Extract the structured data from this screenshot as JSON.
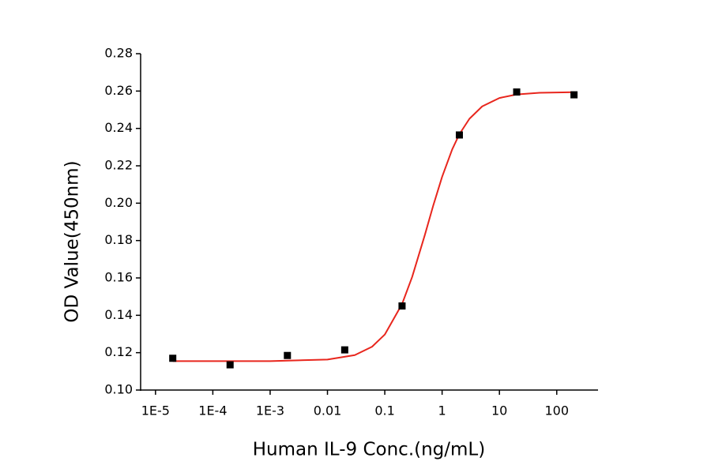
{
  "chart_data": {
    "type": "scatter",
    "x_label": "Human IL-9 Conc.(ng/mL)",
    "y_label": "OD Value(450nm)",
    "xscale": "log",
    "xlim": [
      5.5e-06,
      525
    ],
    "xticks": [
      {
        "value": 1e-05,
        "label": "1E-5"
      },
      {
        "value": 0.0001,
        "label": "1E-4"
      },
      {
        "value": 0.001,
        "label": "1E-3"
      },
      0.01,
      0.1,
      1,
      10,
      100
    ],
    "ylim": [
      0.1,
      0.28
    ],
    "yticks": [
      {
        "value": 0.1,
        "label": "0.10"
      },
      0.12,
      0.14,
      0.16,
      0.18,
      {
        "value": 0.2,
        "label": "0.20"
      },
      0.22,
      0.24,
      0.26,
      0.28
    ],
    "series": [
      {
        "type": "scatter",
        "color": "#000000",
        "x": [
          2e-05,
          0.0002,
          0.002,
          0.02,
          0.2,
          2,
          20,
          200
        ],
        "values": [
          0.117,
          0.1135,
          0.1185,
          0.1215,
          0.145,
          0.2365,
          0.2595,
          0.258
        ]
      },
      {
        "type": "line",
        "color": "#e8261d",
        "x": [
          2e-05,
          0.0001,
          0.001,
          0.01,
          0.03,
          0.06,
          0.1,
          0.2,
          0.3,
          0.5,
          0.7,
          1,
          1.5,
          2,
          3,
          5,
          10,
          20,
          50,
          200
        ],
        "values": [
          0.1155,
          0.1155,
          0.1155,
          0.1163,
          0.1187,
          0.1232,
          0.1297,
          0.146,
          0.1605,
          0.183,
          0.1987,
          0.2141,
          0.2288,
          0.2369,
          0.2452,
          0.2518,
          0.2563,
          0.2582,
          0.2591,
          0.2594
        ]
      }
    ]
  }
}
